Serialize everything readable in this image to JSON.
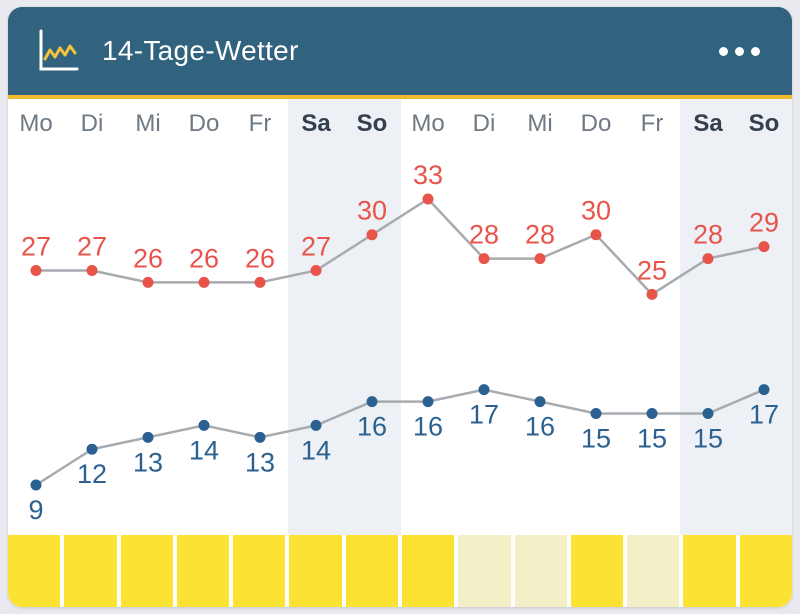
{
  "header": {
    "title": "14-Tage-Wetter",
    "icon": "line-chart-icon",
    "menu_icon": "ellipsis-icon"
  },
  "colors": {
    "page_bg": "#e8eaef",
    "card_bg": "#ffffff",
    "header_bg": "#31627e",
    "gold_divider": "#eebb2d",
    "high": "#e8544a",
    "low": "#2a6191",
    "line": "#a7abb0",
    "weekend_band": "#edf1f6",
    "day_label": "#6e7984",
    "weekend_label": "#333f4d",
    "sun_bright": "#fbe233",
    "sun_pale": "#f3efc6",
    "icon_zigzag": "#f2c33d"
  },
  "chart_data": {
    "type": "line",
    "title": "14-Tage-Wetter",
    "categories": [
      "Mo",
      "Di",
      "Mi",
      "Do",
      "Fr",
      "Sa",
      "So",
      "Mo",
      "Di",
      "Mi",
      "Do",
      "Fr",
      "Sa",
      "So"
    ],
    "weekend_indices": [
      5,
      6,
      12,
      13
    ],
    "series": [
      {
        "name": "high",
        "values": [
          27,
          27,
          26,
          26,
          26,
          27,
          30,
          33,
          28,
          28,
          30,
          25,
          28,
          29
        ]
      },
      {
        "name": "low",
        "values": [
          9,
          12,
          13,
          14,
          13,
          14,
          16,
          16,
          17,
          16,
          15,
          15,
          15,
          17
        ]
      }
    ],
    "ylim": [
      7,
      35
    ],
    "grid": false,
    "legend": "none",
    "sun_pale_indices": [
      8,
      9,
      11
    ]
  }
}
